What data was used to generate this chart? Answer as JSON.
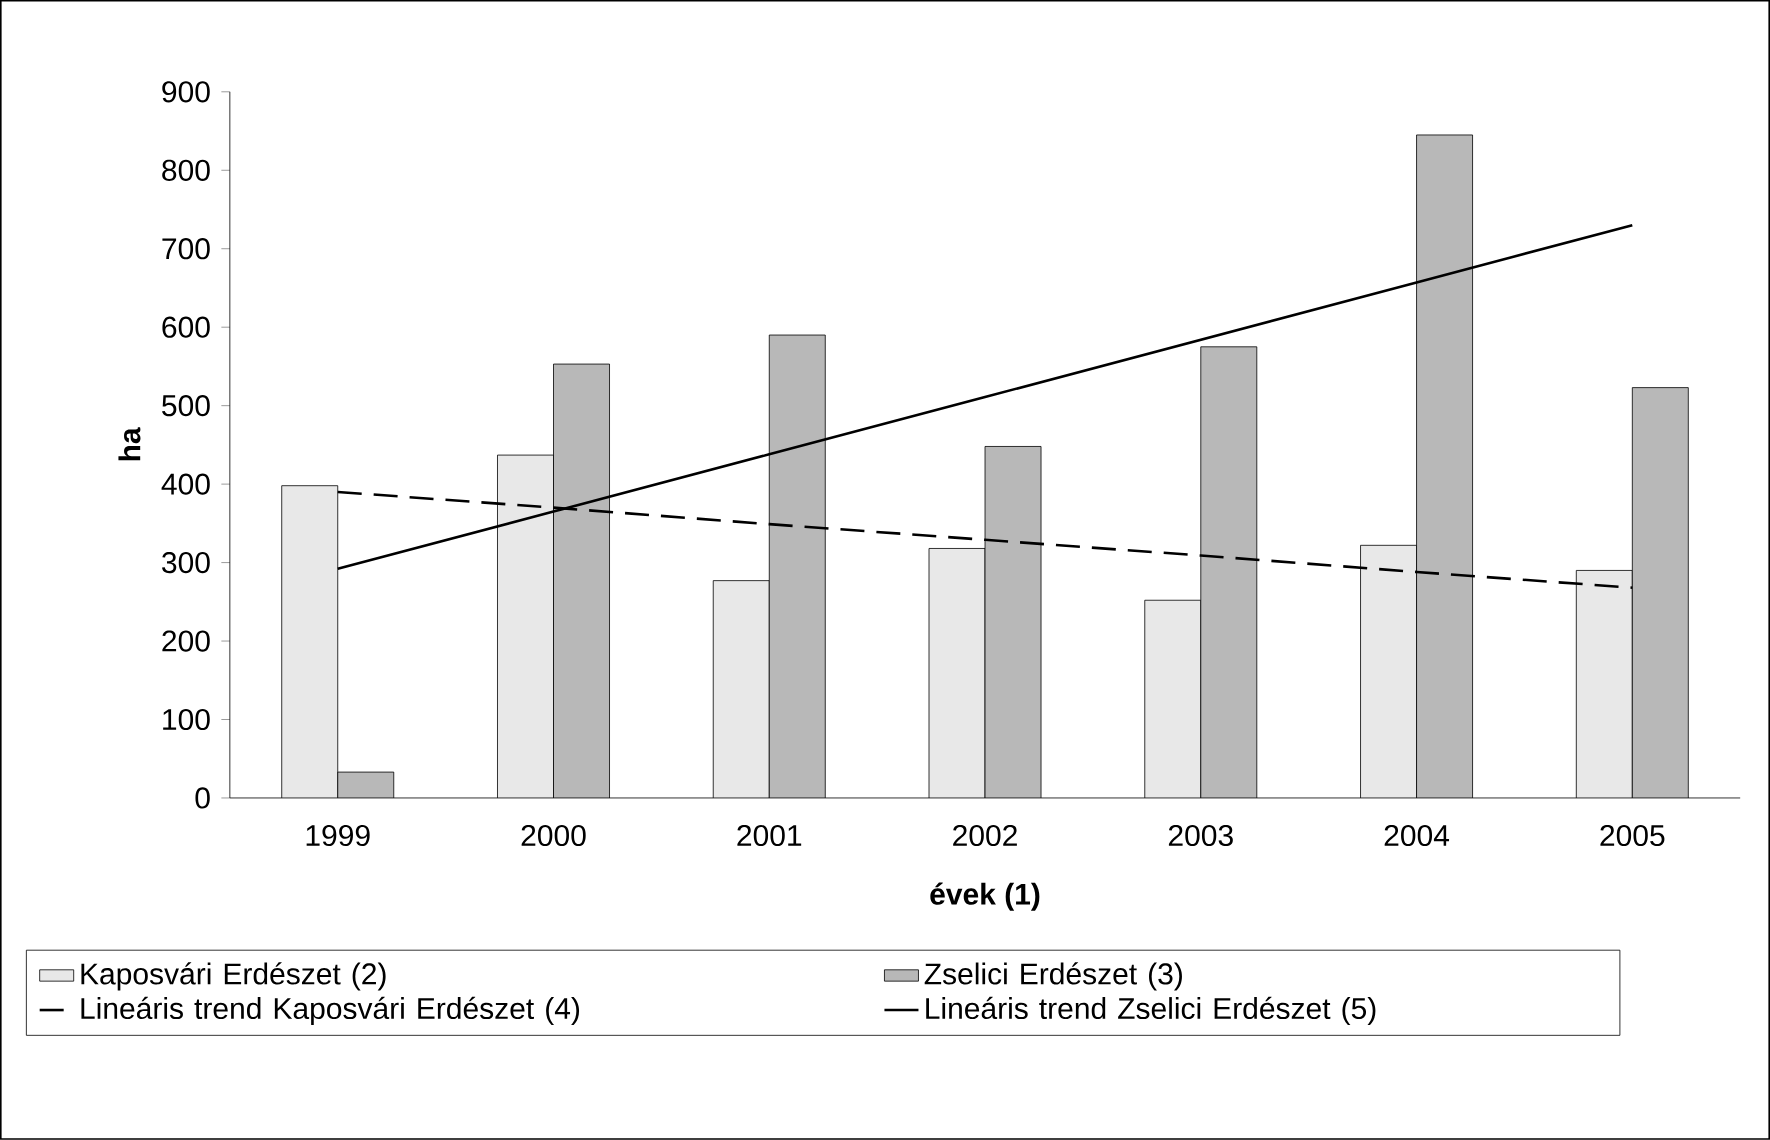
{
  "chart_data": {
    "type": "bar",
    "xlabel": "évek (1)",
    "ylabel": "ha",
    "categories": [
      "1999",
      "2000",
      "2001",
      "2002",
      "2003",
      "2004",
      "2005"
    ],
    "series": [
      {
        "name": "Kaposvári Erdészet (2)",
        "color": "#e8e8e8",
        "values": [
          398,
          437,
          277,
          318,
          252,
          322,
          290
        ]
      },
      {
        "name": "Zselici Erdészet (3)",
        "color": "#b8b8b8",
        "values": [
          33,
          553,
          590,
          448,
          575,
          845,
          523
        ]
      },
      {
        "name": "Lineáris trend Kaposvári Erdészet (4)",
        "type": "line",
        "line_style": "dashed",
        "color": "#000000",
        "values": [
          390,
          370,
          349,
          329,
          309,
          288,
          268
        ]
      },
      {
        "name": "Lineáris trend Zselici Erdészet (5)",
        "type": "line",
        "line_style": "solid",
        "color": "#000000",
        "values": [
          292,
          365,
          438,
          511,
          584,
          657,
          730
        ]
      }
    ],
    "ylim": [
      0,
      900
    ],
    "yticks": [
      0,
      100,
      200,
      300,
      400,
      500,
      600,
      700,
      800,
      900
    ],
    "grid": false,
    "legend": "bottom",
    "marker": "none"
  }
}
